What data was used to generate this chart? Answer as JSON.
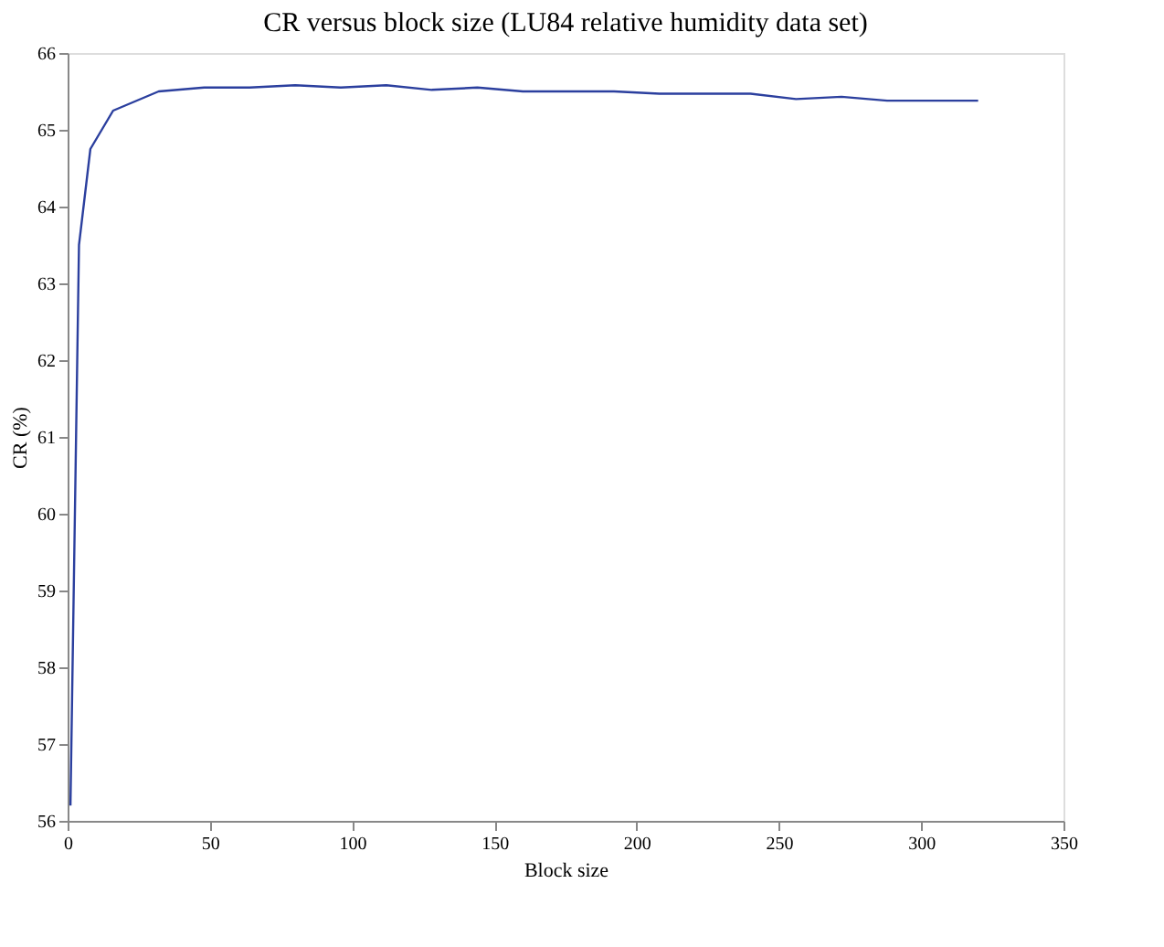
{
  "chart_data": {
    "type": "line",
    "title": "CR versus block size (LU84 relative humidity data set)",
    "xlabel": "Block size",
    "ylabel": "CR (%)",
    "x": [
      1,
      4,
      8,
      16,
      32,
      48,
      64,
      80,
      96,
      112,
      128,
      144,
      160,
      176,
      192,
      208,
      224,
      240,
      256,
      272,
      288,
      304,
      320
    ],
    "series": [
      {
        "color": "#2b3f9e",
        "values": [
          56.2,
          63.5,
          64.75,
          65.25,
          65.5,
          65.55,
          65.55,
          65.58,
          65.55,
          65.58,
          65.52,
          65.55,
          65.5,
          65.5,
          65.5,
          65.47,
          65.47,
          65.47,
          65.4,
          65.43,
          65.38,
          65.38,
          65.38
        ]
      }
    ],
    "xlim": [
      0,
      350
    ],
    "xticks": [
      0,
      50,
      100,
      150,
      200,
      250,
      300,
      350
    ],
    "ylim": [
      56,
      66
    ],
    "yticks": [
      56,
      57,
      58,
      59,
      60,
      61,
      62,
      63,
      64,
      65,
      66
    ],
    "grid": false,
    "legend": false,
    "marker": "none",
    "line_style": "solid"
  }
}
